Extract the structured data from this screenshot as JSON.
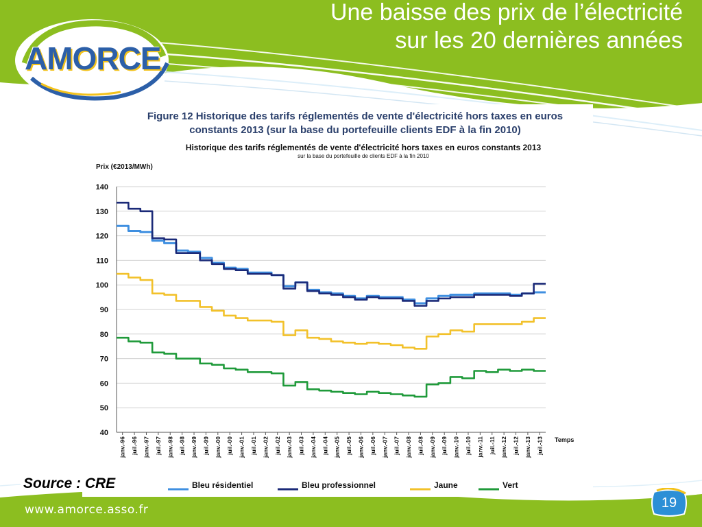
{
  "slide": {
    "title_line1": "Une baisse des prix de l’électricité",
    "title_line2": "sur les 20 dernières années",
    "logo_text": "AMORCE",
    "source": "Source : CRE",
    "footer_url": "www.amorce.asso.fr",
    "page_number": "19",
    "colors": {
      "green": "#8cbe20",
      "blue": "#2c5fa8",
      "yellow": "#f3c21b"
    }
  },
  "figure": {
    "caption_line1": "Figure 12 Historique des tarifs réglementés de vente d'électricité hors taxes en euros",
    "caption_line2": "constants 2013 (sur la base du portefeuille clients EDF à la fin 2010)"
  },
  "chart_data": {
    "type": "line",
    "title": "Historique des tarifs réglementés de vente d'électricité hors taxes en euros constants 2013",
    "subtitle": "sur la base du portefeuille de clients EDF à la fin 2010",
    "ylabel": "Prix (€2013/MWh)",
    "xlabel": "Temps",
    "ylim": [
      40,
      140
    ],
    "yticks": [
      40,
      50,
      60,
      70,
      80,
      90,
      100,
      110,
      120,
      130,
      140
    ],
    "grid": true,
    "legend_position": "bottom",
    "x_tick_labels": [
      "janv.-96",
      "juil.-96",
      "janv.-97",
      "juil.-97",
      "janv.-98",
      "juil.-98",
      "janv.-99",
      "juil.-99",
      "janv.-00",
      "juil.-00",
      "janv.-01",
      "juil.-01",
      "janv.-02",
      "juil.-02",
      "janv.-03",
      "juil.-03",
      "janv.-04",
      "juil.-04",
      "janv.-05",
      "juil.-05",
      "janv.-06",
      "juil.-06",
      "janv.-07",
      "juil.-07",
      "janv.-08",
      "juil.-08",
      "janv.-09",
      "juil.-09",
      "janv.-10",
      "juil.-10",
      "janv.-11",
      "juil.-11",
      "janv.-12",
      "juil.-12",
      "janv.-13",
      "juil.-13"
    ],
    "x": [
      "janv.-96",
      "juil.-96",
      "janv.-97",
      "juil.-97",
      "janv.-98",
      "juil.-98",
      "janv.-99",
      "juil.-99",
      "janv.-00",
      "juil.-00",
      "janv.-01",
      "juil.-01",
      "janv.-02",
      "juil.-02",
      "janv.-03",
      "juil.-03",
      "janv.-04",
      "juil.-04",
      "janv.-05",
      "juil.-05",
      "janv.-06",
      "juil.-06",
      "janv.-07",
      "juil.-07",
      "janv.-08",
      "juil.-08",
      "janv.-09",
      "juil.-09",
      "janv.-10",
      "juil.-10",
      "janv.-11",
      "juil.-11",
      "janv.-12",
      "juil.-12",
      "janv.-13",
      "juil.-13"
    ],
    "series": [
      {
        "name": "Bleu résidentiel",
        "color": "#3f8fe0",
        "values": [
          124,
          122,
          121.5,
          118,
          117,
          114,
          113.5,
          111,
          109,
          107,
          106.5,
          105,
          105,
          104,
          99.5,
          101,
          98,
          97,
          96.5,
          95.5,
          94.5,
          95.5,
          95,
          95,
          94,
          92.5,
          94.5,
          95.5,
          96,
          96,
          96.5,
          96.5,
          96.5,
          96,
          96.5,
          97
        ]
      },
      {
        "name": "Bleu professionnel",
        "color": "#1b2a78",
        "values": [
          133.5,
          131,
          130,
          119,
          118.5,
          113,
          113,
          110,
          108.5,
          106.5,
          106,
          104.5,
          104.5,
          104,
          98.5,
          101,
          97.5,
          96.5,
          96,
          95,
          94,
          95,
          94.5,
          94.5,
          93.5,
          91.5,
          93.5,
          94.5,
          95,
          95,
          96,
          96,
          96,
          95.5,
          96.5,
          100.5
        ]
      },
      {
        "name": "Jaune",
        "color": "#f2c12a",
        "values": [
          104.5,
          103,
          102,
          96.5,
          96,
          93.5,
          93.5,
          91,
          89.5,
          87.5,
          86.5,
          85.5,
          85.5,
          85,
          79.5,
          81.5,
          78.5,
          78,
          77,
          76.5,
          76,
          76.5,
          76,
          75.5,
          74.5,
          74,
          79,
          80,
          81.5,
          81,
          84,
          84,
          84,
          84,
          85,
          86.5
        ]
      },
      {
        "name": "Vert",
        "color": "#1f9a3a",
        "values": [
          78.5,
          77,
          76.5,
          72.5,
          72,
          70,
          70,
          68,
          67.5,
          66,
          65.5,
          64.5,
          64.5,
          64,
          59,
          60.5,
          57.5,
          57,
          56.5,
          56,
          55.5,
          56.5,
          56,
          55.5,
          55,
          54.5,
          59.5,
          60,
          62.5,
          62,
          65,
          64.5,
          65.5,
          65,
          65.5,
          65
        ]
      }
    ]
  }
}
